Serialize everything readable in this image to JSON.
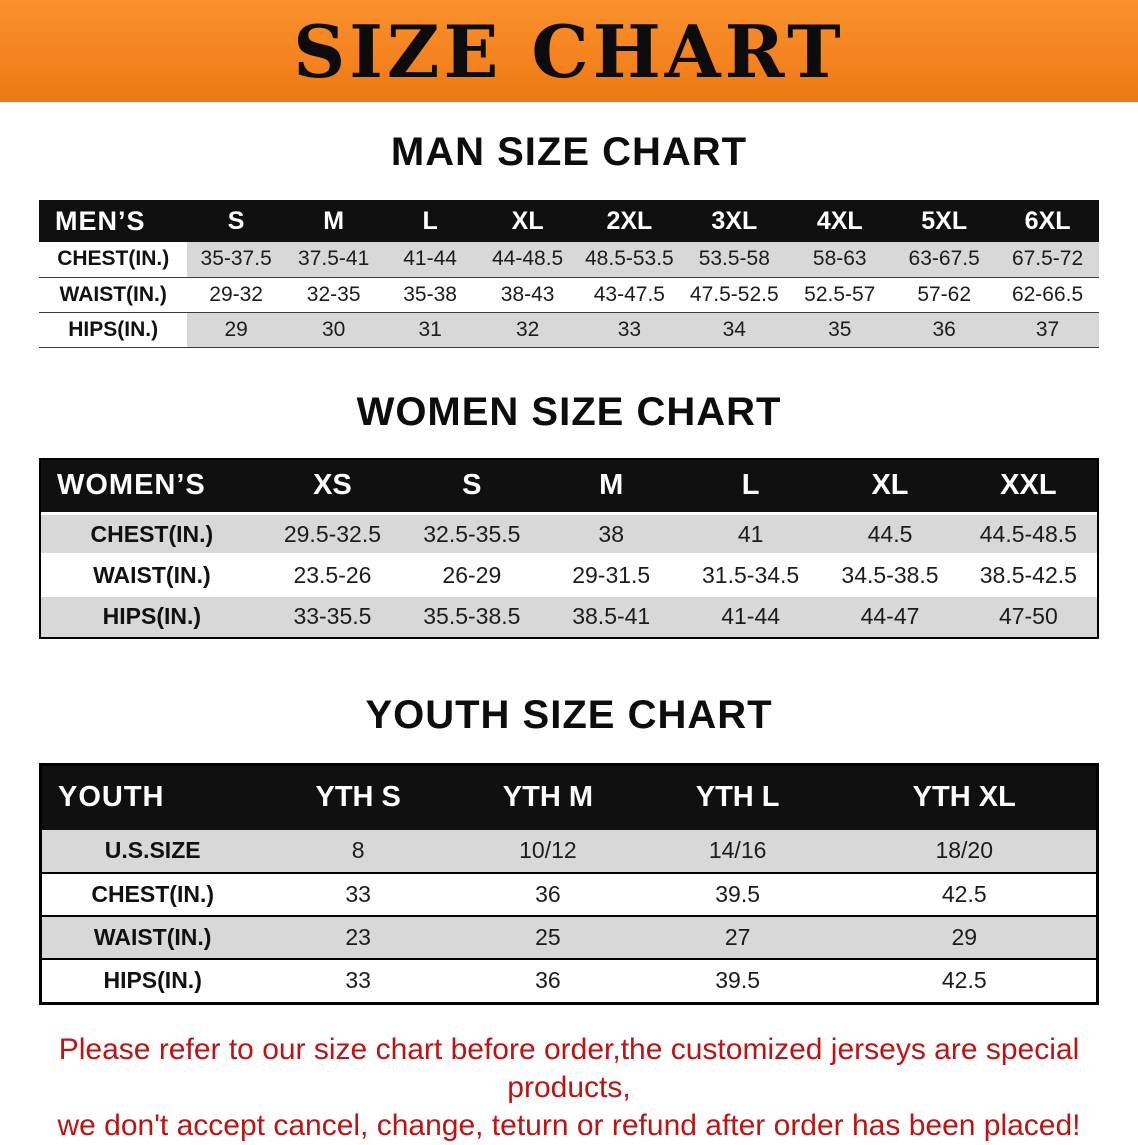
{
  "banner": {
    "title": "SIZE CHART"
  },
  "colors": {
    "banner_orange": "#F5831F",
    "table_header_black": "#101010",
    "row_stripe_gray": "#D8D8D8",
    "disclaimer_red": "#C11212"
  },
  "sections": [
    {
      "heading": "MAN SIZE CHART",
      "table": {
        "header": [
          "MEN’S",
          "S",
          "M",
          "L",
          "XL",
          "2XL",
          "3XL",
          "4XL",
          "5XL",
          "6XL"
        ],
        "rows": [
          [
            "CHEST(IN.)",
            "35-37.5",
            "37.5-41",
            "41-44",
            "44-48.5",
            "48.5-53.5",
            "53.5-58",
            "58-63",
            "63-67.5",
            "67.5-72"
          ],
          [
            "WAIST(IN.)",
            "29-32",
            "32-35",
            "35-38",
            "38-43",
            "43-47.5",
            "47.5-52.5",
            "52.5-57",
            "57-62",
            "62-66.5"
          ],
          [
            "HIPS(IN.)",
            "29",
            "30",
            "31",
            "32",
            "33",
            "34",
            "35",
            "36",
            "37"
          ]
        ]
      }
    },
    {
      "heading": "WOMEN SIZE CHART",
      "table": {
        "header": [
          "WOMEN’S",
          "XS",
          "S",
          "M",
          "L",
          "XL",
          "XXL"
        ],
        "rows": [
          [
            "CHEST(IN.)",
            "29.5-32.5",
            "32.5-35.5",
            "38",
            "41",
            "44.5",
            "44.5-48.5"
          ],
          [
            "WAIST(IN.)",
            "23.5-26",
            "26-29",
            "29-31.5",
            "31.5-34.5",
            "34.5-38.5",
            "38.5-42.5"
          ],
          [
            "HIPS(IN.)",
            "33-35.5",
            "35.5-38.5",
            "38.5-41",
            "41-44",
            "44-47",
            "47-50"
          ]
        ]
      }
    },
    {
      "heading": "YOUTH SIZE CHART",
      "table": {
        "header": [
          "YOUTH",
          "YTH S",
          "YTH M",
          "YTH L",
          "YTH XL"
        ],
        "rows": [
          [
            "U.S.SIZE",
            "8",
            "10/12",
            "14/16",
            "18/20"
          ],
          [
            "CHEST(IN.)",
            "33",
            "36",
            "39.5",
            "42.5"
          ],
          [
            "WAIST(IN.)",
            "23",
            "25",
            "27",
            "29"
          ],
          [
            "HIPS(IN.)",
            "33",
            "36",
            "39.5",
            "42.5"
          ]
        ]
      }
    }
  ],
  "footer": {
    "line1": "Please refer to our size chart before order,the customized jerseys are special products,",
    "line2": "we don't accept cancel, change, teturn or refund after order has been placed!"
  }
}
